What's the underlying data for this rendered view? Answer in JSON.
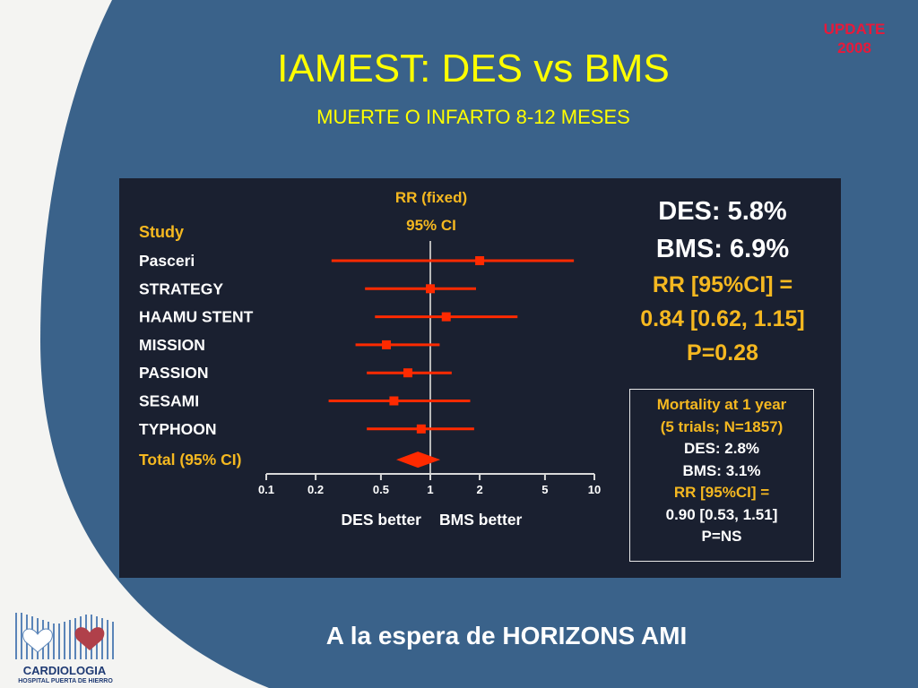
{
  "slide": {
    "badge_line1": "UPDATE",
    "badge_line2": "2008",
    "title": "IAMEST: DES vs BMS",
    "subtitle": "MUERTE O INFARTO 8-12 MESES",
    "footer": "A la espera de HORIZONS AMI",
    "logo_line1": "CARDIOLOGIA",
    "logo_line2": "HOSPITAL PUERTA DE HIERRO"
  },
  "colors": {
    "background_blue": "#3a628a",
    "title_yellow": "#ffff00",
    "marker_red": "#ff2a00",
    "label_gold": "#f5b820"
  },
  "chart_data": {
    "type": "forest",
    "title": "RR (fixed)",
    "subtitle": "95% CI",
    "column_header": "Study",
    "scale": "log",
    "xlim": [
      0.1,
      10
    ],
    "ticks": [
      0.1,
      0.2,
      0.5,
      1,
      2,
      5,
      10
    ],
    "tick_labels": [
      "0.1",
      "0.2",
      "0.5",
      "1",
      "2",
      "5",
      "10"
    ],
    "reference_line": 1,
    "left_label": "DES better",
    "right_label": "BMS better",
    "studies": [
      {
        "name": "Pasceri",
        "rr": 2.0,
        "lo": 0.25,
        "hi": 7.5
      },
      {
        "name": "STRATEGY",
        "rr": 1.0,
        "lo": 0.4,
        "hi": 1.9
      },
      {
        "name": "HAAMU STENT",
        "rr": 1.25,
        "lo": 0.46,
        "hi": 3.4
      },
      {
        "name": "MISSION",
        "rr": 0.54,
        "lo": 0.35,
        "hi": 1.14
      },
      {
        "name": "PASSION",
        "rr": 0.73,
        "lo": 0.41,
        "hi": 1.35
      },
      {
        "name": "SESAMI",
        "rr": 0.6,
        "lo": 0.24,
        "hi": 1.75
      },
      {
        "name": "TYPHOON",
        "rr": 0.88,
        "lo": 0.41,
        "hi": 1.85
      }
    ],
    "total": {
      "name": "Total (95% CI)",
      "rr": 0.84,
      "lo": 0.62,
      "hi": 1.15
    }
  },
  "stats": {
    "des": "DES: 5.8%",
    "bms": "BMS: 6.9%",
    "rr_label": "RR [95%CI] =",
    "rr_value": "0.84 [0.62, 1.15]",
    "p": "P=0.28"
  },
  "mortality": {
    "title": "Mortality at 1 year",
    "trials": "(5 trials; N=1857)",
    "des": "DES: 2.8%",
    "bms": "BMS: 3.1%",
    "rr_label": "RR [95%CI] =",
    "rr_value": "0.90 [0.53, 1.51]",
    "p": "P=NS"
  }
}
